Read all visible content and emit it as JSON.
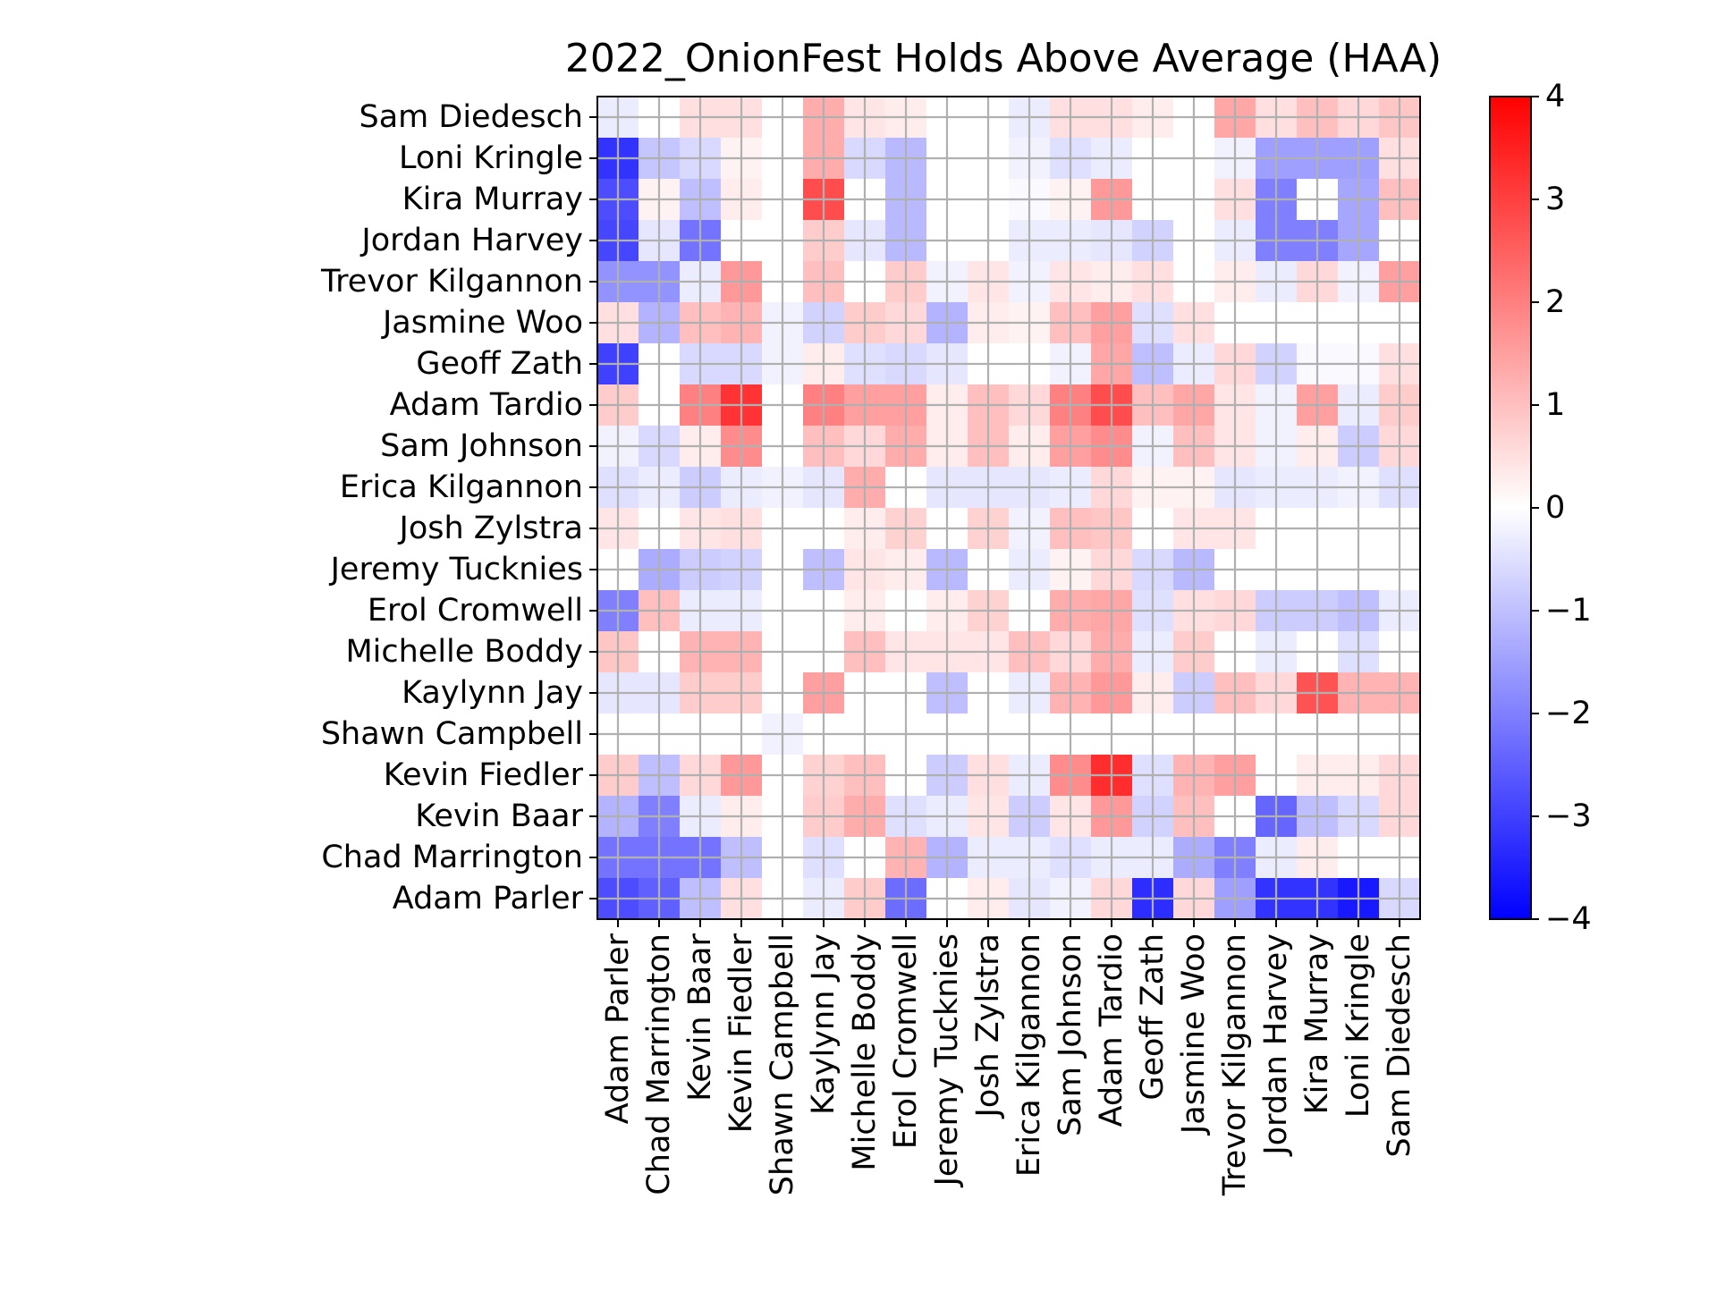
{
  "chart_data": {
    "type": "heatmap",
    "title": "2022_OnionFest Holds Above Average (HAA)",
    "x_labels": [
      "Adam Parler",
      "Chad Marrington",
      "Kevin Baar",
      "Kevin Fiedler",
      "Shawn Campbell",
      "Kaylynn Jay",
      "Michelle Boddy",
      "Erol Cromwell",
      "Jeremy Tucknies",
      "Josh Zylstra",
      "Erica Kilgannon",
      "Sam Johnson",
      "Adam Tardio",
      "Geoff Zath",
      "Jasmine Woo",
      "Trevor Kilgannon",
      "Jordan Harvey",
      "Kira Murray",
      "Loni Kringle",
      "Sam Diedesch"
    ],
    "y_labels": [
      "Sam Diedesch",
      "Loni Kringle",
      "Kira Murray",
      "Jordan Harvey",
      "Trevor Kilgannon",
      "Jasmine Woo",
      "Geoff Zath",
      "Adam Tardio",
      "Sam Johnson",
      "Erica Kilgannon",
      "Josh Zylstra",
      "Jeremy Tucknies",
      "Erol Cromwell",
      "Michelle Boddy",
      "Kaylynn Jay",
      "Shawn Campbell",
      "Kevin Fiedler",
      "Kevin Baar",
      "Chad Marrington",
      "Adam Parler"
    ],
    "values": [
      [
        -0.3,
        0.0,
        0.5,
        0.5,
        0.0,
        1.3,
        0.4,
        0.3,
        0.0,
        0.0,
        -0.3,
        0.5,
        0.5,
        0.3,
        0.0,
        1.4,
        0.5,
        1.0,
        0.6,
        0.9
      ],
      [
        -3.2,
        -0.9,
        -0.6,
        0.2,
        0.0,
        1.3,
        -0.6,
        -1.1,
        0.0,
        0.0,
        -0.2,
        -0.5,
        -0.3,
        0.0,
        0.0,
        -0.2,
        -1.5,
        -1.5,
        -1.5,
        0.5
      ],
      [
        -2.8,
        0.2,
        -1.0,
        0.3,
        0.0,
        2.8,
        0.0,
        -1.1,
        0.0,
        0.0,
        -0.1,
        0.2,
        1.6,
        0.0,
        0.0,
        0.5,
        -2.0,
        0.0,
        -1.4,
        1.0
      ],
      [
        -2.9,
        -0.4,
        -2.2,
        0.0,
        0.0,
        0.8,
        -0.4,
        -1.1,
        0.0,
        0.0,
        -0.3,
        -0.3,
        -0.4,
        -0.7,
        0.0,
        -0.3,
        -2.0,
        -2.0,
        -1.4,
        0.0
      ],
      [
        -1.7,
        -1.7,
        -0.3,
        1.6,
        0.0,
        1.0,
        0.0,
        0.8,
        -0.2,
        0.4,
        -0.2,
        0.4,
        0.3,
        0.5,
        0.0,
        0.3,
        -0.3,
        0.6,
        -0.2,
        1.5
      ],
      [
        0.5,
        -1.2,
        1.0,
        1.2,
        -0.2,
        -0.7,
        0.8,
        0.6,
        -1.2,
        0.3,
        0.2,
        1.0,
        1.5,
        -0.5,
        0.5,
        0.0,
        0.0,
        0.0,
        0.0,
        0.0
      ],
      [
        -3.0,
        0.0,
        -0.6,
        -0.6,
        -0.2,
        0.3,
        -0.5,
        -0.6,
        -0.4,
        0.0,
        0.0,
        -0.2,
        1.4,
        -1.0,
        -0.3,
        0.6,
        -0.7,
        -0.1,
        -0.1,
        0.5
      ],
      [
        0.8,
        0.0,
        2.0,
        3.2,
        0.0,
        2.0,
        1.5,
        1.5,
        0.3,
        1.0,
        0.6,
        2.0,
        2.8,
        1.0,
        1.4,
        0.4,
        -0.2,
        1.5,
        -0.3,
        0.8
      ],
      [
        -0.2,
        -0.6,
        0.3,
        1.8,
        0.0,
        1.0,
        0.6,
        1.3,
        0.3,
        1.0,
        0.3,
        1.5,
        1.8,
        -0.2,
        1.0,
        0.4,
        -0.2,
        0.3,
        -0.8,
        0.6
      ],
      [
        -0.5,
        -0.3,
        -0.8,
        -0.3,
        -0.2,
        -0.4,
        1.3,
        0.0,
        -0.4,
        -0.4,
        -0.4,
        -0.3,
        0.6,
        0.2,
        0.2,
        -0.4,
        -0.3,
        -0.3,
        -0.2,
        -0.5
      ],
      [
        0.4,
        0.0,
        0.4,
        0.5,
        0.0,
        0.0,
        0.3,
        0.7,
        0.0,
        0.7,
        -0.2,
        1.0,
        0.9,
        0.0,
        0.4,
        0.4,
        0.0,
        0.0,
        0.0,
        0.0
      ],
      [
        0.0,
        -1.3,
        -0.8,
        -0.7,
        0.0,
        -1.0,
        0.4,
        0.3,
        -1.1,
        0.0,
        -0.3,
        0.2,
        0.6,
        -0.6,
        -1.1,
        0.0,
        0.0,
        0.0,
        0.0,
        0.0
      ],
      [
        -2.0,
        1.0,
        -0.3,
        -0.3,
        0.0,
        0.0,
        0.3,
        0.0,
        0.3,
        0.7,
        0.0,
        1.3,
        1.4,
        -0.5,
        0.5,
        0.6,
        -0.8,
        -0.8,
        -1.0,
        -0.3
      ],
      [
        0.9,
        0.0,
        1.2,
        1.2,
        0.0,
        0.0,
        1.0,
        0.4,
        0.4,
        0.4,
        1.0,
        0.6,
        1.3,
        -0.3,
        0.8,
        0.0,
        -0.3,
        0.0,
        -0.5,
        0.0
      ],
      [
        -0.4,
        -0.4,
        0.8,
        0.8,
        0.0,
        1.5,
        0.0,
        0.0,
        -1.0,
        0.0,
        -0.3,
        1.2,
        1.6,
        0.3,
        -0.8,
        1.0,
        0.6,
        2.7,
        1.2,
        1.2
      ],
      [
        0.0,
        0.0,
        0.0,
        0.0,
        -0.2,
        0.0,
        0.0,
        0.0,
        0.0,
        0.0,
        0.0,
        0.0,
        0.0,
        0.0,
        0.0,
        0.0,
        0.0,
        0.0,
        0.0,
        0.0
      ],
      [
        0.8,
        -1.0,
        0.6,
        1.6,
        0.0,
        0.7,
        1.0,
        0.0,
        -0.8,
        0.5,
        -0.3,
        1.8,
        3.3,
        -0.5,
        1.2,
        1.5,
        0.0,
        0.3,
        0.3,
        0.6
      ],
      [
        -1.2,
        -2.0,
        -0.3,
        0.3,
        0.0,
        0.8,
        1.3,
        -0.5,
        -0.3,
        0.4,
        -0.8,
        0.4,
        1.6,
        -0.7,
        1.0,
        0.0,
        -2.4,
        -1.0,
        -0.6,
        0.6
      ],
      [
        -2.2,
        -2.2,
        -2.2,
        -1.0,
        0.0,
        -0.5,
        0.0,
        1.2,
        -1.2,
        -0.3,
        -0.3,
        -0.5,
        -0.3,
        -0.3,
        -1.3,
        -2.0,
        -0.3,
        0.3,
        0.0,
        0.0
      ],
      [
        -2.8,
        -2.5,
        -1.0,
        0.5,
        0.0,
        -0.3,
        0.8,
        -2.3,
        0.0,
        0.3,
        -0.4,
        -0.2,
        0.6,
        -3.3,
        0.6,
        -1.5,
        -3.2,
        -3.2,
        -3.6,
        -0.6
      ]
    ],
    "colorbar": {
      "vmin": -4,
      "vmax": 4,
      "ticks": [
        -4,
        -3,
        -2,
        -1,
        0,
        1,
        2,
        3,
        4
      ],
      "tick_labels": [
        "−4",
        "−3",
        "−2",
        "−1",
        "0",
        "1",
        "2",
        "3",
        "4"
      ],
      "colormap": "bwr"
    },
    "grid": true,
    "grid_color": "#b0b0b0",
    "colors": {
      "low": "#0000ff",
      "mid": "#ffffff",
      "high": "#ff0000"
    }
  }
}
